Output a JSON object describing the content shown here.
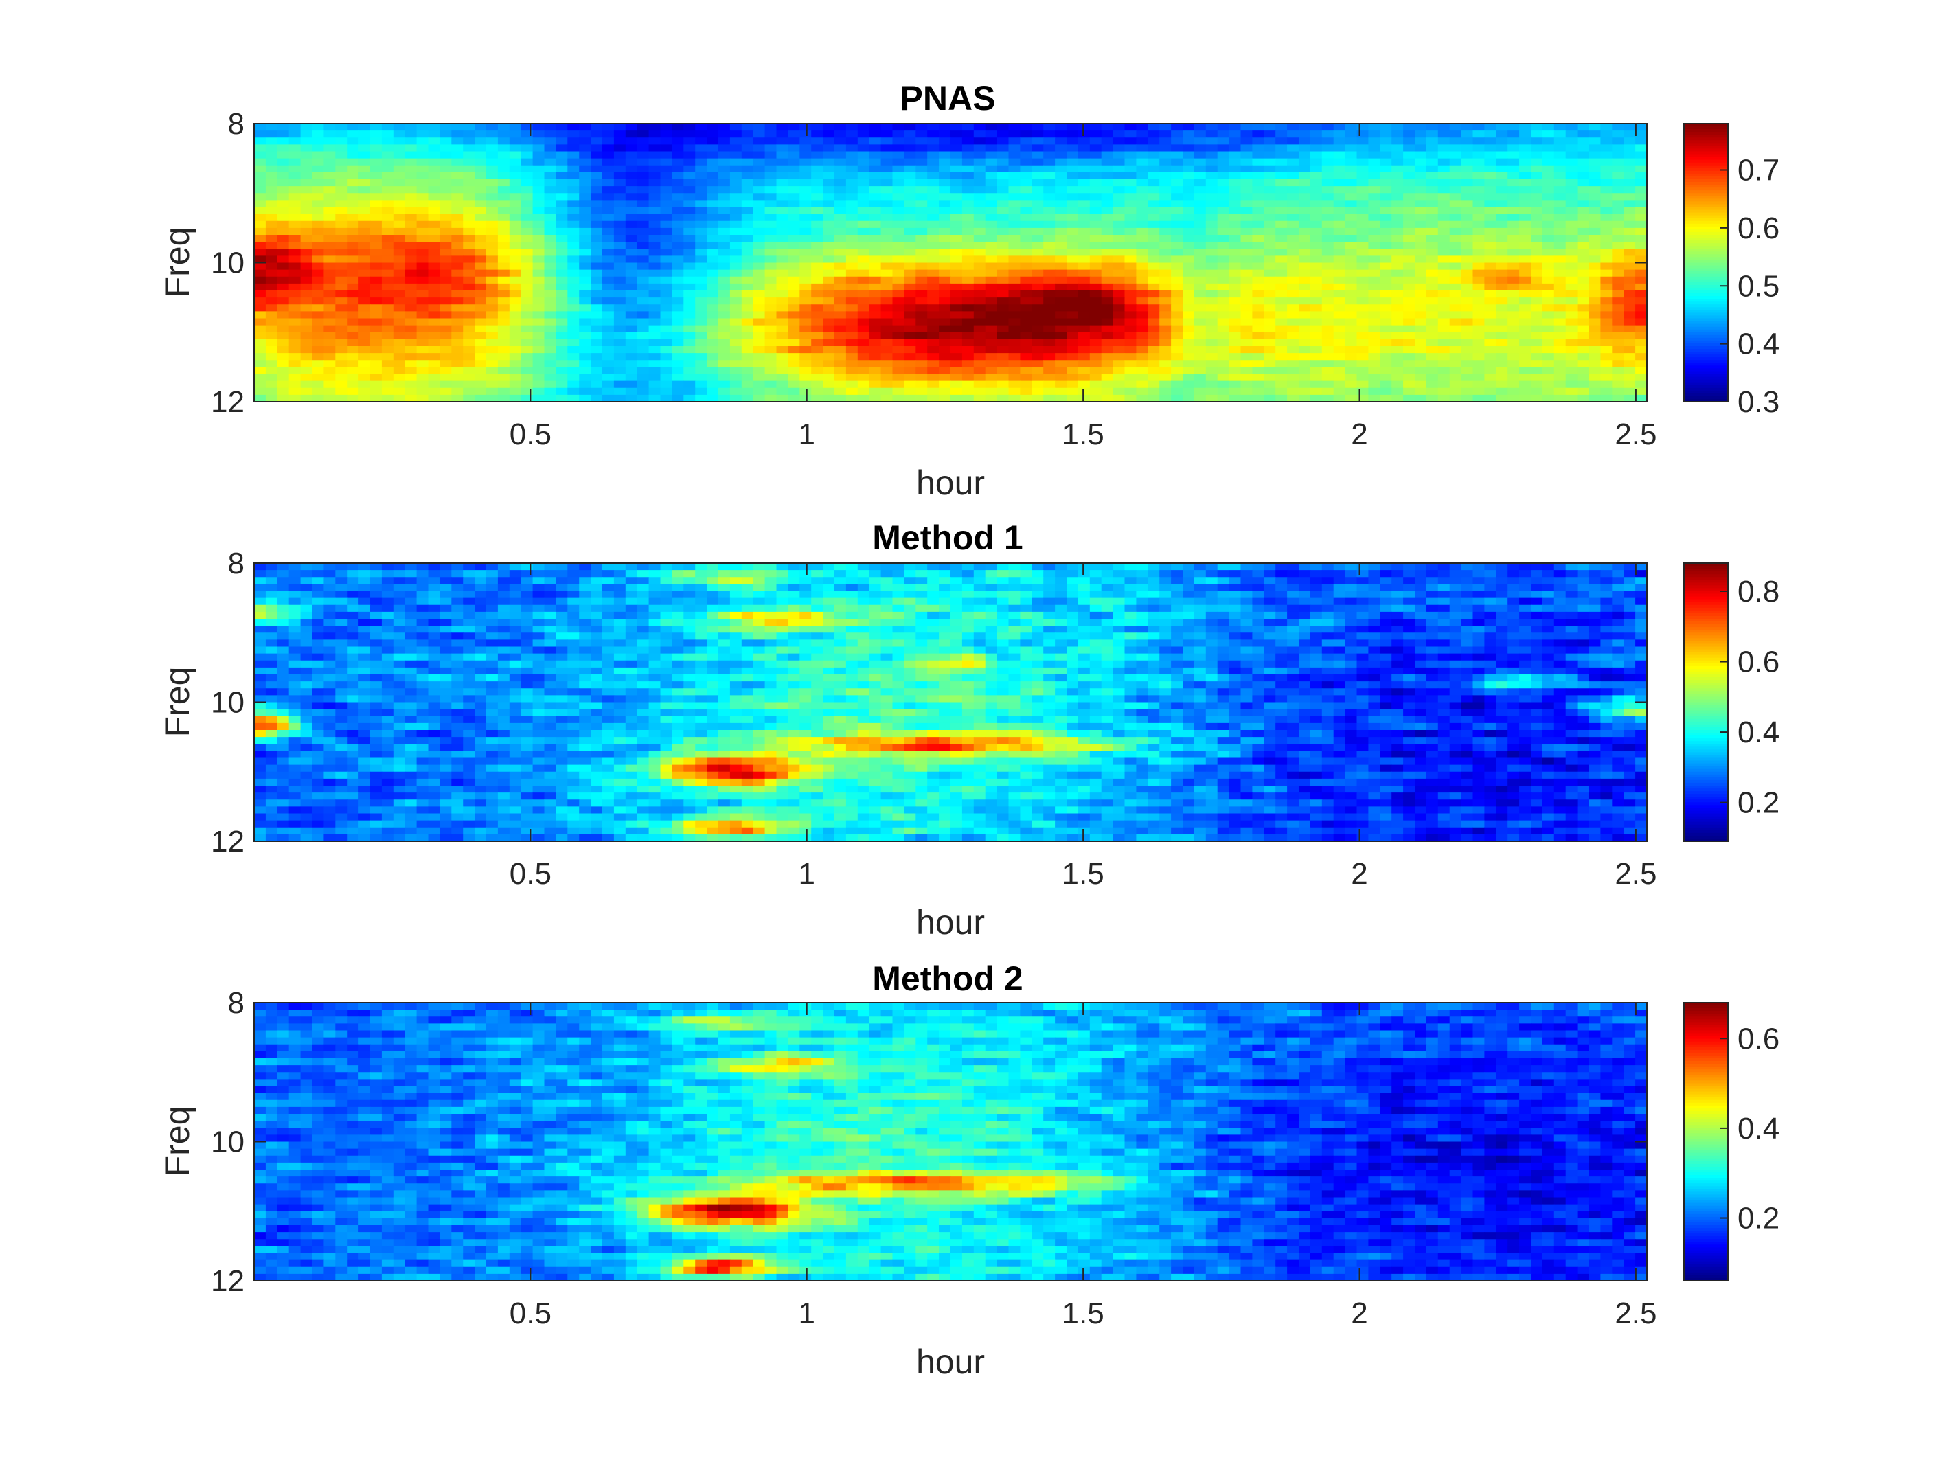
{
  "figure": {
    "background": "#ffffff"
  },
  "chart_data": [
    {
      "type": "heatmap",
      "title": "PNAS",
      "xlabel": "hour",
      "ylabel": "Freq",
      "xlim": [
        0,
        2.52
      ],
      "ylim": [
        8,
        12
      ],
      "y_reversed": true,
      "xticks": [
        "0.5",
        "1",
        "1.5",
        "2",
        "2.5"
      ],
      "yticks": [
        "8",
        "10",
        "12"
      ],
      "colormap": "jet",
      "colorbar": {
        "range": [
          0.3,
          0.78
        ],
        "ticks": [
          "0.3",
          "0.4",
          "0.5",
          "0.6",
          "0.7"
        ]
      },
      "blobs": [
        {
          "x": 0.22,
          "y": 10.5,
          "amp": 0.2,
          "sx": 0.28,
          "sy": 1.3
        },
        {
          "x": 0.02,
          "y": 10.1,
          "amp": 0.14,
          "sx": 0.06,
          "sy": 0.4
        },
        {
          "x": 0.35,
          "y": 10.1,
          "amp": 0.07,
          "sx": 0.1,
          "sy": 0.4
        },
        {
          "x": 1.25,
          "y": 10.9,
          "amp": 0.27,
          "sx": 0.3,
          "sy": 0.7
        },
        {
          "x": 1.5,
          "y": 10.6,
          "amp": 0.1,
          "sx": 0.1,
          "sy": 0.4
        },
        {
          "x": 2.2,
          "y": 10.8,
          "amp": 0.12,
          "sx": 0.5,
          "sy": 1.3
        },
        {
          "x": 2.27,
          "y": 10.2,
          "amp": 0.08,
          "sx": 0.06,
          "sy": 0.15
        },
        {
          "x": 2.5,
          "y": 10.6,
          "amp": 0.12,
          "sx": 0.06,
          "sy": 0.6
        },
        {
          "x": 0.68,
          "y": 10.2,
          "amp": -0.13,
          "sx": 0.12,
          "sy": 1.6
        },
        {
          "x": 1.7,
          "y": 10.6,
          "amp": -0.05,
          "sx": 0.04,
          "sy": 0.9
        },
        {
          "x": 1.3,
          "y": 8.2,
          "amp": -0.07,
          "sx": 0.6,
          "sy": 0.35
        },
        {
          "x": 1.0,
          "y": 8.0,
          "amp": -0.04,
          "sx": 1.5,
          "sy": 0.3
        }
      ],
      "baseline": 0.47,
      "noise": 0.035,
      "seed": 11
    },
    {
      "type": "heatmap",
      "title": "Method 1",
      "xlabel": "hour",
      "ylabel": "Freq",
      "xlim": [
        0,
        2.52
      ],
      "ylim": [
        8,
        12
      ],
      "y_reversed": true,
      "xticks": [
        "0.5",
        "1",
        "1.5",
        "2",
        "2.5"
      ],
      "yticks": [
        "8",
        "10",
        "12"
      ],
      "colormap": "jet",
      "colorbar": {
        "range": [
          0.09,
          0.88
        ],
        "ticks": [
          "0.2",
          "0.4",
          "0.6",
          "0.8"
        ]
      },
      "blobs": [
        {
          "x": 1.2,
          "y": 10.2,
          "amp": 0.18,
          "sx": 0.4,
          "sy": 2.0
        },
        {
          "x": 0.86,
          "y": 11.0,
          "amp": 0.42,
          "sx": 0.1,
          "sy": 0.15
        },
        {
          "x": 1.25,
          "y": 10.6,
          "amp": 0.3,
          "sx": 0.22,
          "sy": 0.12
        },
        {
          "x": 0.86,
          "y": 11.8,
          "amp": 0.38,
          "sx": 0.07,
          "sy": 0.1
        },
        {
          "x": 0.95,
          "y": 8.8,
          "amp": 0.28,
          "sx": 0.08,
          "sy": 0.1
        },
        {
          "x": 0.85,
          "y": 8.2,
          "amp": 0.2,
          "sx": 0.08,
          "sy": 0.1
        },
        {
          "x": 1.27,
          "y": 9.45,
          "amp": 0.22,
          "sx": 0.04,
          "sy": 0.08
        },
        {
          "x": 0.02,
          "y": 10.3,
          "amp": 0.45,
          "sx": 0.04,
          "sy": 0.15
        },
        {
          "x": 0.02,
          "y": 8.7,
          "amp": 0.3,
          "sx": 0.05,
          "sy": 0.1
        },
        {
          "x": 2.28,
          "y": 9.7,
          "amp": 0.22,
          "sx": 0.06,
          "sy": 0.08
        },
        {
          "x": 2.5,
          "y": 10.1,
          "amp": 0.25,
          "sx": 0.06,
          "sy": 0.15
        },
        {
          "x": 2.1,
          "y": 10.8,
          "amp": -0.08,
          "sx": 0.5,
          "sy": 1.5
        }
      ],
      "baseline": 0.27,
      "noise": 0.1,
      "seed": 23
    },
    {
      "type": "heatmap",
      "title": "Method 2",
      "xlabel": "hour",
      "ylabel": "Freq",
      "xlim": [
        0,
        2.52
      ],
      "ylim": [
        8,
        12
      ],
      "y_reversed": true,
      "xticks": [
        "0.5",
        "1",
        "1.5",
        "2",
        "2.5"
      ],
      "yticks": [
        "8",
        "10",
        "12"
      ],
      "colormap": "jet",
      "colorbar": {
        "range": [
          0.06,
          0.68
        ],
        "ticks": [
          "0.2",
          "0.4",
          "0.6"
        ]
      },
      "blobs": [
        {
          "x": 1.2,
          "y": 10.2,
          "amp": 0.14,
          "sx": 0.4,
          "sy": 2.0
        },
        {
          "x": 0.85,
          "y": 11.0,
          "amp": 0.38,
          "sx": 0.1,
          "sy": 0.15
        },
        {
          "x": 1.2,
          "y": 10.6,
          "amp": 0.22,
          "sx": 0.25,
          "sy": 0.12
        },
        {
          "x": 0.84,
          "y": 11.8,
          "amp": 0.33,
          "sx": 0.07,
          "sy": 0.1
        },
        {
          "x": 0.95,
          "y": 8.9,
          "amp": 0.2,
          "sx": 0.08,
          "sy": 0.1
        },
        {
          "x": 0.85,
          "y": 8.3,
          "amp": 0.16,
          "sx": 0.08,
          "sy": 0.1
        },
        {
          "x": 2.1,
          "y": 10.4,
          "amp": -0.07,
          "sx": 0.5,
          "sy": 1.5
        }
      ],
      "baseline": 0.2,
      "noise": 0.07,
      "seed": 37
    }
  ]
}
